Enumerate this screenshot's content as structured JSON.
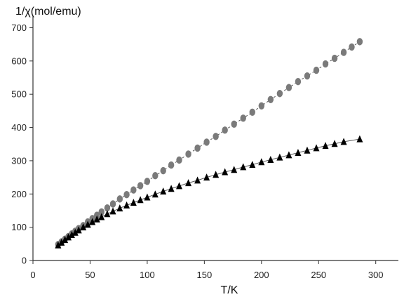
{
  "chart_data": {
    "type": "scatter",
    "title": "",
    "xlabel": "T/K",
    "ylabel": "1/χ(mol/emu)",
    "xlim": [
      0,
      310
    ],
    "ylim": [
      0,
      720
    ],
    "xticks": [
      0,
      50,
      100,
      150,
      200,
      250,
      300
    ],
    "yticks": [
      0,
      100,
      200,
      300,
      400,
      500,
      600,
      700
    ],
    "xtick_labels": [
      "0",
      "50",
      "100",
      "150",
      "200",
      "250",
      "300"
    ],
    "ytick_labels": [
      "0",
      "100",
      "200",
      "300",
      "400",
      "500",
      "600",
      "700"
    ],
    "grid": false,
    "series": [
      {
        "marker": "circle",
        "color": "#7a7a7a",
        "fit_line": true,
        "points": [
          [
            22,
            48
          ],
          [
            25,
            56
          ],
          [
            28,
            64
          ],
          [
            31,
            72
          ],
          [
            34,
            80
          ],
          [
            37,
            88
          ],
          [
            40,
            96
          ],
          [
            44,
            105
          ],
          [
            48,
            116
          ],
          [
            52,
            126
          ],
          [
            56,
            136
          ],
          [
            60,
            146
          ],
          [
            65,
            158
          ],
          [
            70,
            170
          ],
          [
            76,
            185
          ],
          [
            82,
            198
          ],
          [
            88,
            212
          ],
          [
            94,
            225
          ],
          [
            100,
            238
          ],
          [
            107,
            255
          ],
          [
            114,
            270
          ],
          [
            121,
            287
          ],
          [
            128,
            302
          ],
          [
            136,
            320
          ],
          [
            144,
            338
          ],
          [
            152,
            356
          ],
          [
            160,
            373
          ],
          [
            168,
            392
          ],
          [
            176,
            410
          ],
          [
            184,
            428
          ],
          [
            192,
            446
          ],
          [
            200,
            465
          ],
          [
            208,
            484
          ],
          [
            216,
            502
          ],
          [
            224,
            520
          ],
          [
            232,
            538
          ],
          [
            240,
            555
          ],
          [
            248,
            572
          ],
          [
            256,
            591
          ],
          [
            264,
            608
          ],
          [
            272,
            626
          ],
          [
            279,
            642
          ],
          [
            286,
            658
          ]
        ]
      },
      {
        "marker": "triangle",
        "color": "#000000",
        "fit_line": true,
        "points": [
          [
            22,
            46
          ],
          [
            25,
            54
          ],
          [
            28,
            62
          ],
          [
            31,
            70
          ],
          [
            34,
            77
          ],
          [
            37,
            84
          ],
          [
            40,
            91
          ],
          [
            44,
            100
          ],
          [
            48,
            108
          ],
          [
            52,
            116
          ],
          [
            56,
            124
          ],
          [
            60,
            131
          ],
          [
            65,
            140
          ],
          [
            70,
            148
          ],
          [
            76,
            157
          ],
          [
            82,
            166
          ],
          [
            88,
            174
          ],
          [
            94,
            182
          ],
          [
            100,
            190
          ],
          [
            107,
            199
          ],
          [
            114,
            208
          ],
          [
            121,
            216
          ],
          [
            128,
            224
          ],
          [
            136,
            233
          ],
          [
            144,
            241
          ],
          [
            152,
            250
          ],
          [
            160,
            258
          ],
          [
            168,
            266
          ],
          [
            176,
            273
          ],
          [
            184,
            281
          ],
          [
            192,
            288
          ],
          [
            200,
            296
          ],
          [
            208,
            303
          ],
          [
            216,
            310
          ],
          [
            224,
            317
          ],
          [
            232,
            324
          ],
          [
            240,
            331
          ],
          [
            248,
            338
          ],
          [
            256,
            345
          ],
          [
            264,
            351
          ],
          [
            272,
            357
          ],
          [
            286,
            365
          ]
        ]
      }
    ]
  }
}
